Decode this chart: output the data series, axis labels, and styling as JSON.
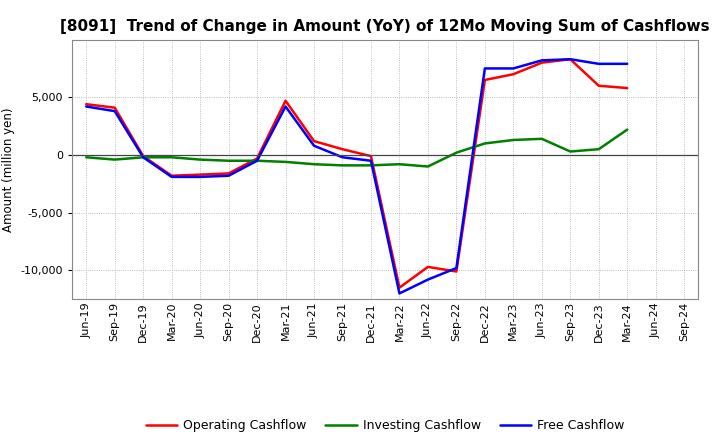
{
  "title": "[8091]  Trend of Change in Amount (YoY) of 12Mo Moving Sum of Cashflows",
  "ylabel": "Amount (million yen)",
  "x_labels": [
    "Jun-19",
    "Sep-19",
    "Dec-19",
    "Mar-20",
    "Jun-20",
    "Sep-20",
    "Dec-20",
    "Mar-21",
    "Jun-21",
    "Sep-21",
    "Dec-21",
    "Mar-22",
    "Jun-22",
    "Sep-22",
    "Dec-22",
    "Mar-23",
    "Jun-23",
    "Sep-23",
    "Dec-23",
    "Mar-24",
    "Jun-24",
    "Sep-24"
  ],
  "operating": [
    4400,
    4100,
    -100,
    -1800,
    -1700,
    -1600,
    -300,
    4700,
    1200,
    500,
    -100,
    -11500,
    -9700,
    -10100,
    6500,
    7000,
    8000,
    8300,
    6000,
    5800,
    null,
    null
  ],
  "investing": [
    -200,
    -400,
    -200,
    -200,
    -400,
    -500,
    -500,
    -600,
    -800,
    -900,
    -900,
    -800,
    -1000,
    200,
    1000,
    1300,
    1400,
    300,
    500,
    2200,
    null,
    null
  ],
  "free": [
    4200,
    3800,
    -200,
    -1900,
    -1900,
    -1800,
    -500,
    4200,
    800,
    -200,
    -500,
    -12000,
    -10800,
    -9800,
    7500,
    7500,
    8200,
    8300,
    7900,
    7900,
    null,
    null
  ],
  "operating_color": "#ff0000",
  "investing_color": "#008000",
  "free_color": "#0000ff",
  "bg_color": "#ffffff",
  "plot_bg_color": "#ffffff",
  "ylim": [
    -12500,
    10000
  ],
  "yticks": [
    -10000,
    -5000,
    0,
    5000
  ],
  "line_width": 1.8,
  "title_fontsize": 11,
  "tick_fontsize": 8,
  "ylabel_fontsize": 8.5,
  "legend_fontsize": 9
}
